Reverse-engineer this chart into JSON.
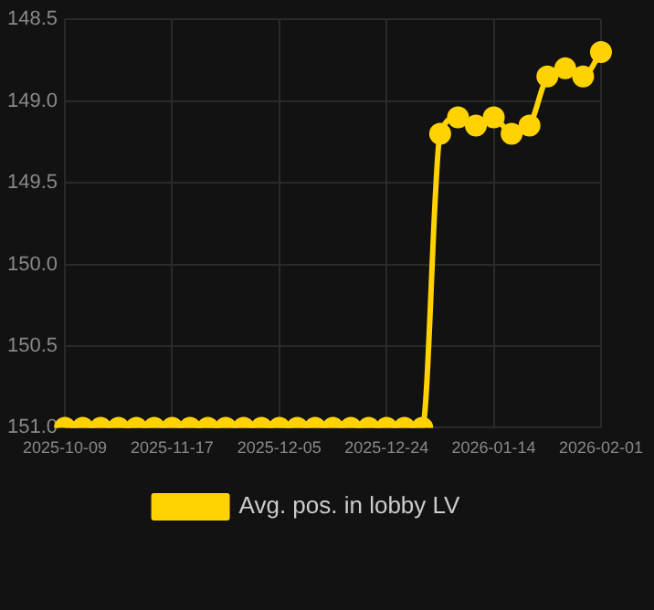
{
  "chart_data": {
    "type": "line",
    "categories": [
      "2025-10-09",
      null,
      null,
      null,
      null,
      null,
      "2025-11-17",
      null,
      null,
      null,
      null,
      null,
      "2025-12-05",
      null,
      null,
      null,
      null,
      null,
      "2025-12-24",
      null,
      null,
      null,
      null,
      null,
      "2026-01-14",
      null,
      null,
      null,
      null,
      null,
      "2026-02-01"
    ],
    "series": [
      {
        "name": "Avg. pos. in lobby LV",
        "color": "#ffd200",
        "values": [
          151.0,
          151.0,
          151.0,
          151.0,
          151.0,
          151.0,
          151.0,
          151.0,
          151.0,
          151.0,
          151.0,
          151.0,
          151.0,
          151.0,
          151.0,
          151.0,
          151.0,
          151.0,
          151.0,
          151.0,
          151.0,
          149.2,
          149.1,
          149.15,
          149.1,
          149.2,
          149.15,
          148.85,
          148.8,
          148.85,
          148.7
        ]
      }
    ],
    "ylim": [
      151.0,
      148.5
    ],
    "yticks": [
      {
        "value": 148.5,
        "label": "148.5"
      },
      {
        "value": 149.0,
        "label": "149.0"
      },
      {
        "value": 149.5,
        "label": "149.5"
      },
      {
        "value": 150.0,
        "label": "150.0"
      },
      {
        "value": 150.5,
        "label": "150.5"
      },
      {
        "value": 151.0,
        "label": "151.0"
      }
    ],
    "grid": true,
    "legend": "bottom",
    "marker": "circle",
    "line_style": "solid"
  }
}
